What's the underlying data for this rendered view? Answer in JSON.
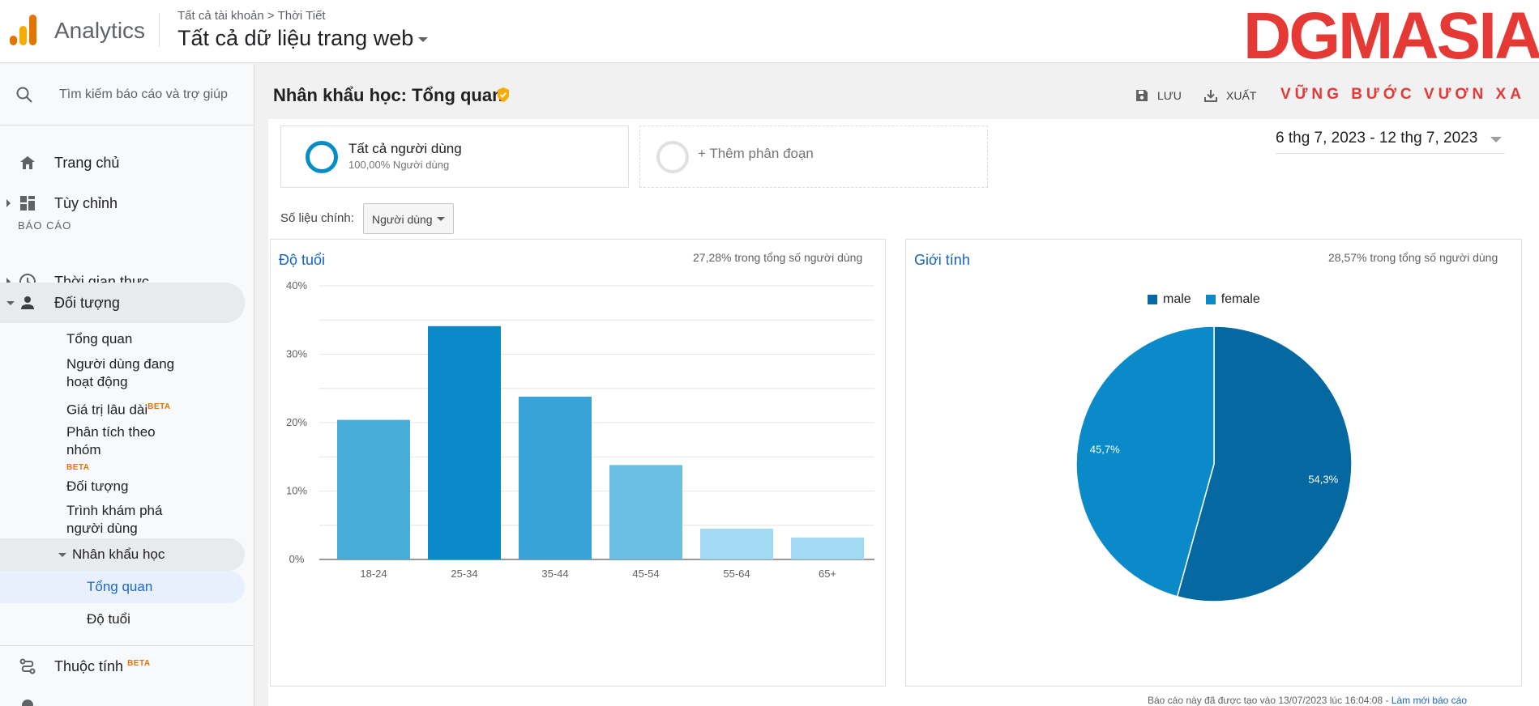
{
  "app": {
    "name": "Analytics"
  },
  "header": {
    "breadcrumb": {
      "account": "Tất cả tài khoản",
      "separator": ">",
      "property": "Thời Tiết"
    },
    "view": "Tất cả dữ liệu trang web"
  },
  "watermark": {
    "main": "DGMASIA",
    "sub": "VỮNG BƯỚC VƯƠN XA"
  },
  "sidebar": {
    "search_placeholder": "Tìm kiếm báo cáo và trợ giúp",
    "home": "Trang chủ",
    "customize": "Tùy chỉnh",
    "section": "BÁO CÁO",
    "realtime": "Thời gian thực",
    "audience": "Đối tượng",
    "audience_items": {
      "overview": "Tổng quan",
      "active_users": "Người dùng đang hoạt động",
      "lifetime_value": "Giá trị lâu dài",
      "cohort": "Phân tích theo nhóm",
      "audiences": "Đối tượng",
      "user_explorer": "Trình khám phá người dùng",
      "demographics": "Nhân khẩu học",
      "demo_overview": "Tổng quan",
      "demo_age": "Độ tuổi"
    },
    "beta": "BETA",
    "attributes": "Thuộc tính"
  },
  "page": {
    "title": "Nhân khẩu học: Tổng quan",
    "toolbar": {
      "save": "LƯU",
      "export": "XUẤT"
    },
    "segment": {
      "name": "Tất cả người dùng",
      "share": "100,00% Người dùng",
      "add": "+ Thêm phân đoạn"
    },
    "date_range": "6 thg 7, 2023 - 12 thg 7, 2023",
    "metric_label": "Số liệu chính:",
    "metric_value": "Người dùng",
    "footer_text": "Báo cáo này đã được tạo vào 13/07/2023 lúc 16:04:08 - ",
    "footer_link": "Làm mới báo cáo"
  },
  "age_panel": {
    "title": "Độ tuổi",
    "note": "27,28% trong tổng số người dùng"
  },
  "gender_panel": {
    "title": "Giới tính",
    "note": "28,57% trong tổng số người dùng"
  },
  "colors": {
    "accent": "#058dc7",
    "male": "#0568a0",
    "female": "#0a8ac8"
  },
  "chart_data": [
    {
      "type": "bar",
      "title": "Độ tuổi",
      "categories": [
        "18-24",
        "25-34",
        "35-44",
        "45-54",
        "55-64",
        "65+"
      ],
      "values": [
        20.4,
        34.1,
        23.8,
        13.8,
        4.5,
        3.2
      ],
      "ylim": [
        0,
        40
      ],
      "yticks": [
        "0%",
        "10%",
        "20%",
        "30%",
        "40%"
      ],
      "bar_colors": [
        "#48add9",
        "#0a8ac8",
        "#37a3d7",
        "#6bbfe2",
        "#a2d9f3",
        "#a2d9f3"
      ],
      "grid": true
    },
    {
      "type": "pie",
      "title": "Giới tính",
      "legend": "top",
      "slices": [
        {
          "name": "male",
          "value": 54.3,
          "label": "54,3%",
          "color": "#0568a0"
        },
        {
          "name": "female",
          "value": 45.7,
          "label": "45,7%",
          "color": "#0a8ac8"
        }
      ]
    }
  ]
}
